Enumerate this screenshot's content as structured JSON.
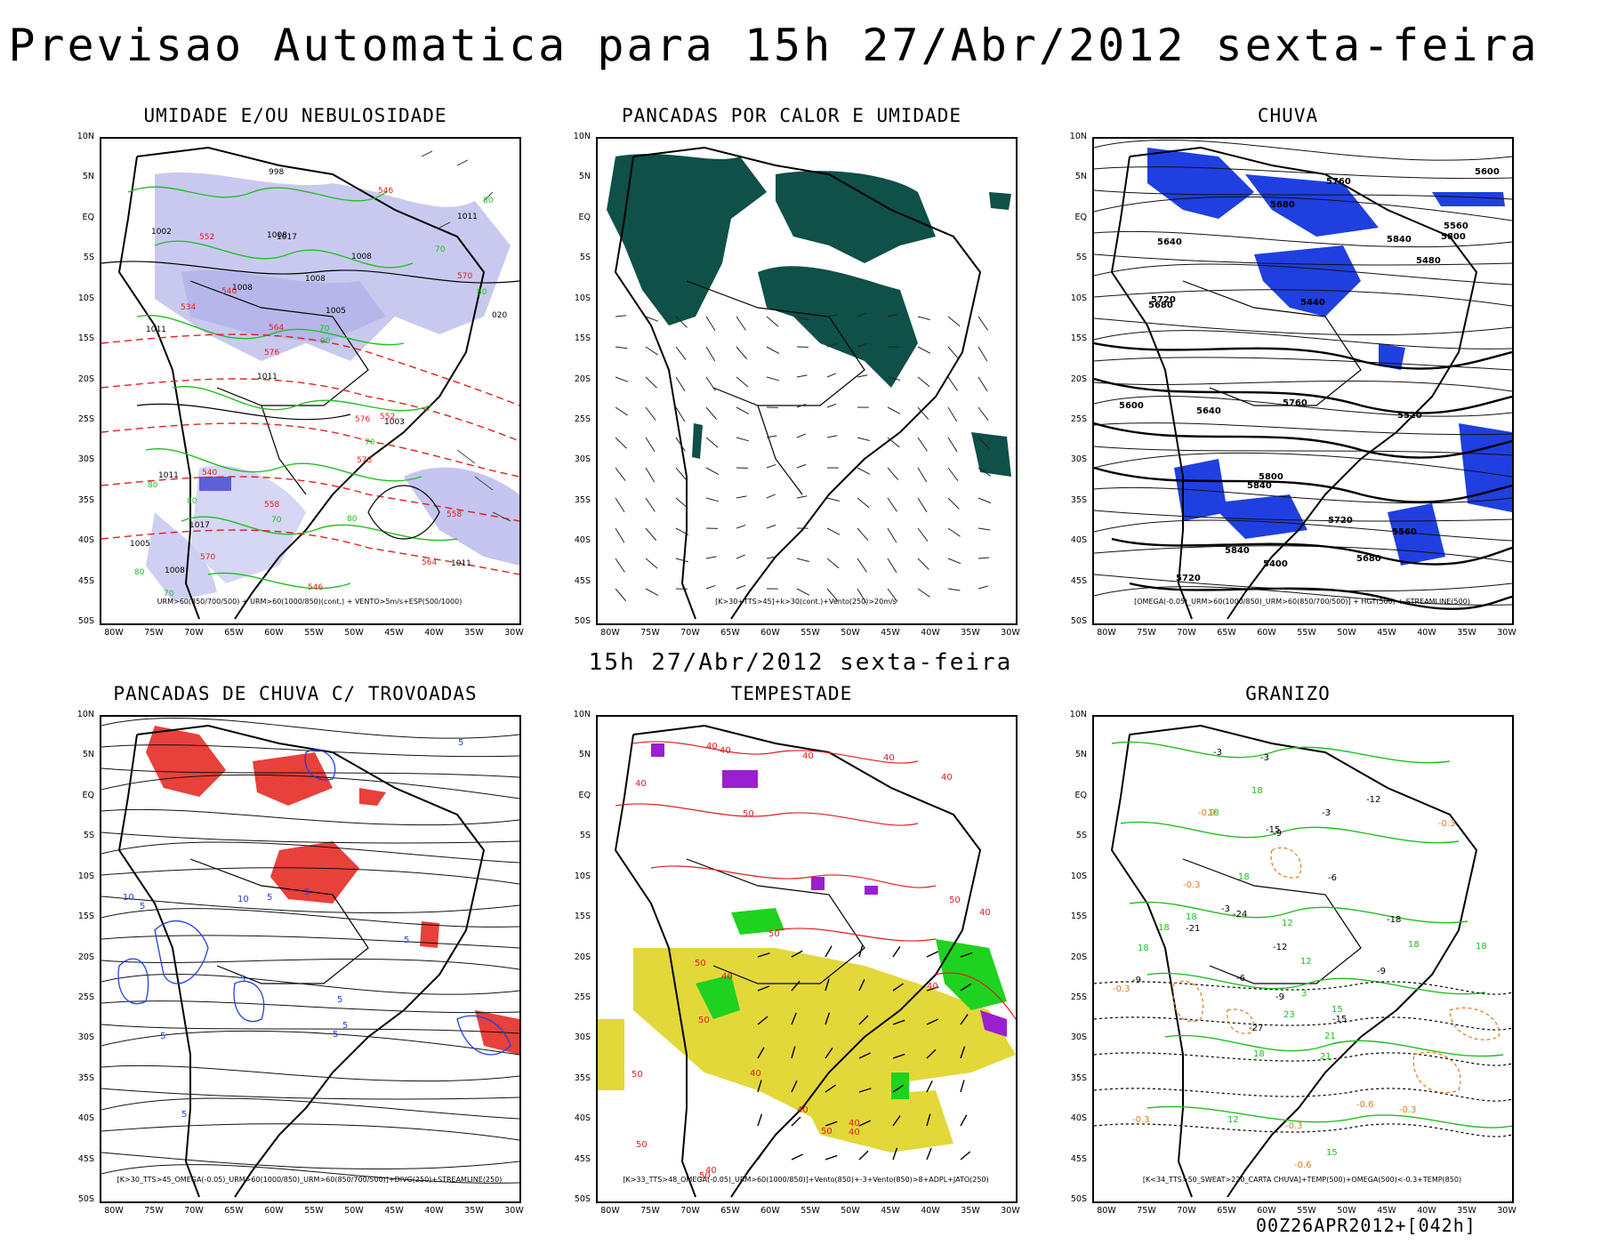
{
  "header": {
    "title": "Previsao Automatica para 15h 27/Abr/2012 sexta-feira"
  },
  "mid": {
    "title": "15h 27/Abr/2012 sexta-feira"
  },
  "footer": {
    "run": "00Z26APR2012+[042h]"
  },
  "axes": {
    "lat_labels": [
      "10N",
      "5N",
      "EQ",
      "5S",
      "10S",
      "15S",
      "20S",
      "25S",
      "30S",
      "35S",
      "40S",
      "45S",
      "50S"
    ],
    "lon_labels": [
      "80W",
      "75W",
      "70W",
      "65W",
      "60W",
      "55W",
      "50W",
      "45W",
      "40W",
      "35W",
      "30W"
    ]
  },
  "panels": [
    {
      "title": "UMIDADE E/OU NEBULOSIDADE",
      "caption": "URM>60(850/700/500) + URM>60(1000/850)(cont.) + VENTO>5m/s+ESP(500/1000)",
      "labels": [
        "1011",
        "1011",
        "1011",
        "1011",
        "1008",
        "1008",
        "1008",
        "1008",
        "1011",
        "1008",
        "1005",
        "1017",
        "1017",
        "1005",
        "1003",
        "1002",
        "998",
        "020",
        "576",
        "570",
        "576",
        "558",
        "564",
        "552",
        "546",
        "540",
        "564",
        "558",
        "552",
        "546",
        "540",
        "534",
        "578",
        "570",
        "80",
        "70",
        "80",
        "70",
        "90",
        "80",
        "70",
        "80",
        "70",
        "80",
        "80",
        "70"
      ]
    },
    {
      "title": "PANCADAS POR CALOR E UMIDADE",
      "caption": "[K>30+TTS>45]+k>30(cont.)+Vento(250)>20m/s",
      "labels": []
    },
    {
      "title": "CHUVA",
      "caption": "[OMEGA(-0.05)_URM>60(1000/850)_URM>60(850/700/500)] + HGT(500) + STREAMLINE(500)",
      "labels": [
        "5840",
        "5800",
        "5760",
        "5720",
        "5680",
        "5840",
        "5600",
        "5560",
        "5720",
        "5680",
        "5640",
        "5840",
        "5800",
        "5760",
        "5720",
        "5680",
        "5640",
        "5600",
        "5560",
        "5520",
        "5480",
        "5440",
        "5400"
      ]
    },
    {
      "title": "PANCADAS DE CHUVA C/ TROVOADAS",
      "caption": "[K>30_TTS>45_OMEGA(-0.05)_URM>60(1000/850)_URM>60(850/700/500)]+DIVG(250)+STREAMLINE(250)",
      "labels": [
        "5",
        "5",
        "5",
        "5",
        "5",
        "5",
        "5",
        "5",
        "10",
        "5",
        "5",
        "10",
        "5"
      ]
    },
    {
      "title": "TEMPESTADE",
      "caption": "[K>33_TTS>48_OMEGA(-0.05)_URM>60(1000/850)]+Vento(850)+-3+Vento(850)>8+ADPL+JATO(250)",
      "labels": [
        "40",
        "40",
        "40",
        "40",
        "50",
        "40",
        "50",
        "40",
        "50",
        "50",
        "50",
        "40",
        "50",
        "40",
        "40",
        "50",
        "40",
        "50",
        "40",
        "40",
        "40",
        "40",
        "50"
      ]
    },
    {
      "title": "GRANIZO",
      "caption": "[K<34_TTS>50_SWEAT>220_CARTA CHUVA]+TEMP(500)+OMEGA(500)<-0.3+TEMP(850)",
      "labels": [
        "18",
        "18",
        "15",
        "18",
        "18",
        "-6",
        "18",
        "18",
        "18",
        "-3",
        "18",
        "21",
        "21",
        "12",
        "18",
        "12",
        "-0.3",
        "-0.3",
        "-9",
        "-9",
        "12",
        "-12",
        "-15",
        "-18",
        "15",
        "-0.3",
        "-0.9",
        "-0.6",
        "-0.3",
        "-3",
        "-9",
        "-12",
        "-0.3",
        "-15",
        "-21",
        "-24",
        "23",
        "-3",
        "-0.3",
        "-0.6",
        "-27",
        "-3",
        "3",
        "-9",
        "-6"
      ]
    }
  ]
}
